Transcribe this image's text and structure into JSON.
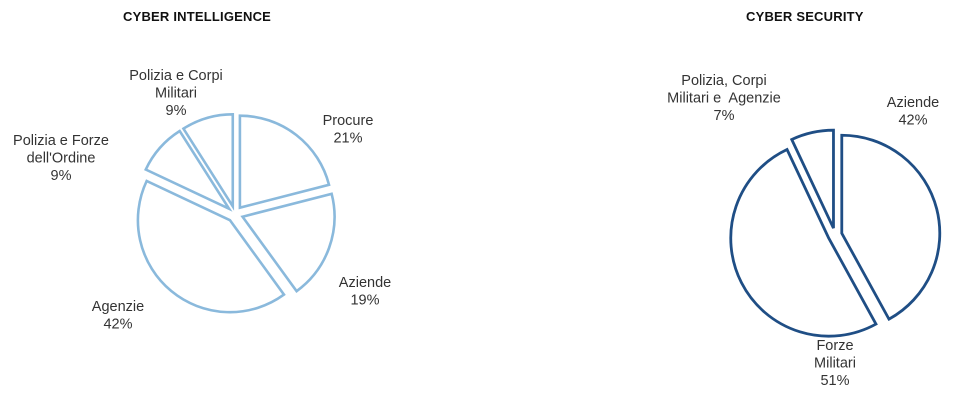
{
  "chart_data": [
    {
      "type": "pie",
      "title": "CYBER INTELLIGENCE",
      "color": "#8ab9dc",
      "slices": [
        {
          "lines": [
            "Procure",
            "21%"
          ],
          "value": 21
        },
        {
          "lines": [
            "Aziende",
            "19%"
          ],
          "value": 19
        },
        {
          "lines": [
            "Agenzie",
            "42%"
          ],
          "value": 42
        },
        {
          "lines": [
            "Polizia e Forze",
            "dell'Ordine",
            "9%"
          ],
          "value": 9
        },
        {
          "lines": [
            "Polizia e Corpi",
            "Militari",
            "9%"
          ],
          "value": 9
        }
      ]
    },
    {
      "type": "pie",
      "title": "CYBER SECURITY",
      "color": "#1f4e85",
      "slices": [
        {
          "lines": [
            "Aziende",
            "42%"
          ],
          "value": 42
        },
        {
          "lines": [
            "Forze",
            "Militari",
            "51%"
          ],
          "value": 51
        },
        {
          "lines": [
            "Polizia, Corpi",
            "Militari e  Agenzie",
            "7%"
          ],
          "value": 7
        }
      ]
    }
  ]
}
